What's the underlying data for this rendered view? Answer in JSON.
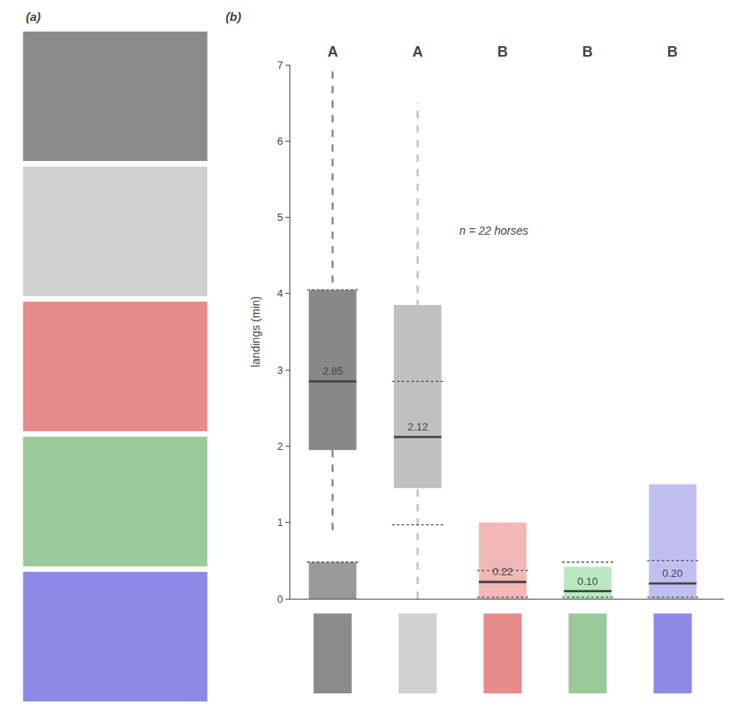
{
  "chart_data": {
    "type": "box",
    "ylabel": "landings (min)",
    "annotation": "n = 22 horses",
    "panel_labels": [
      "(a)",
      "(b)"
    ],
    "categories": [
      "A",
      "A",
      "B",
      "B",
      "B"
    ],
    "values": [
      2.85,
      2.12,
      0.22,
      0.1,
      0.2
    ],
    "value_labels": [
      "2.85",
      "2.12",
      "0.22",
      "0.10",
      "0.20"
    ],
    "data_labels": true,
    "q1": [
      1.95,
      1.45,
      0.0,
      0.0,
      0.0
    ],
    "q3": [
      4.05,
      3.85,
      1.0,
      0.42,
      1.5
    ],
    "whisker_low": [
      0.9,
      0.0,
      0.0,
      0.0,
      0.0
    ],
    "whisker_high": [
      7.0,
      6.5,
      1.0,
      0.42,
      1.5
    ],
    "bottom_bar": [
      0.48,
      0.0,
      0.0,
      0.0,
      0.0
    ],
    "dotted_upper": [
      4.05,
      2.85,
      0.37,
      0.48,
      0.5
    ],
    "dotted_lower": [
      0.48,
      0.97,
      0.02,
      0.02,
      0.02
    ],
    "colors": [
      "#888888",
      "#c0c0c0",
      "#f2b8b8",
      "#b8e8c0",
      "#c0c0f0"
    ],
    "border_colors": [
      "#000000",
      "#999999",
      "#cc0000",
      "#228822",
      "#0000cc"
    ],
    "ylim": [
      0,
      7
    ],
    "yticks": [
      0,
      1,
      2,
      3,
      4,
      5,
      6,
      7
    ],
    "grid": false
  }
}
